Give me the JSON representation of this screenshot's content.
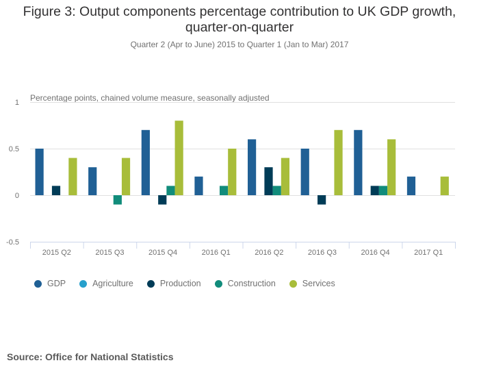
{
  "chart_data": {
    "type": "bar",
    "title": "Figure 3: Output components percentage contribution to UK GDP growth, quarter-on-quarter",
    "title_lines": [
      "Figure 3: Output components percentage contribution to UK GDP growth,",
      "quarter-on-quarter"
    ],
    "subtitle": "Quarter 2 (Apr to June) 2015 to Quarter 1 (Jan to Mar) 2017",
    "ylabel": "Percentage points, chained volume measure, seasonally adjusted",
    "xlabel": "",
    "ylim": [
      -0.5,
      1
    ],
    "yticks": [
      1,
      0.5,
      0,
      -0.5
    ],
    "ytick_labels": [
      "1",
      "0.5",
      "0",
      "-0.5"
    ],
    "grid": true,
    "legend_position": "bottom-left",
    "categories": [
      "2015 Q2",
      "2015 Q3",
      "2015 Q4",
      "2016 Q1",
      "2016 Q2",
      "2016 Q3",
      "2016 Q4",
      "2017 Q1"
    ],
    "series": [
      {
        "name": "GDP",
        "color": "#206095",
        "values": [
          0.5,
          0.3,
          0.7,
          0.2,
          0.6,
          0.5,
          0.7,
          0.2
        ]
      },
      {
        "name": "Agriculture",
        "color": "#27a0cc",
        "values": [
          0,
          0,
          0,
          0,
          0,
          0,
          0,
          0
        ]
      },
      {
        "name": "Production",
        "color": "#003c57",
        "values": [
          0.1,
          0,
          -0.1,
          0,
          0.3,
          -0.1,
          0.1,
          0
        ]
      },
      {
        "name": "Construction",
        "color": "#118c7b",
        "values": [
          0,
          -0.1,
          0.1,
          0.1,
          0.1,
          0,
          0.1,
          0
        ]
      },
      {
        "name": "Services",
        "color": "#a8bd3a",
        "values": [
          0.4,
          0.4,
          0.8,
          0.5,
          0.4,
          0.7,
          0.6,
          0.2
        ]
      }
    ]
  },
  "source": "Source: Office for National Statistics"
}
